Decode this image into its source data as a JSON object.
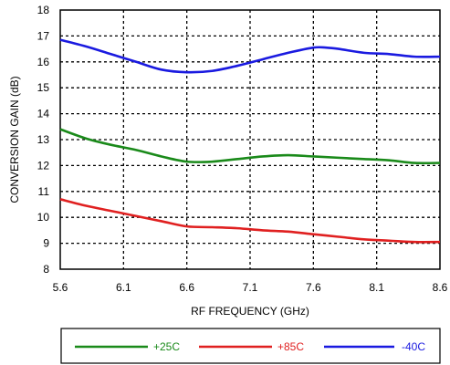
{
  "chart_data": {
    "type": "line",
    "xlabel": "RF FREQUENCY (GHz)",
    "ylabel": "CONVERSION GAIN (dB)",
    "xlim": [
      5.6,
      8.6
    ],
    "ylim": [
      8,
      18
    ],
    "x_ticks": [
      "5.6",
      "6.1",
      "6.6",
      "7.1",
      "7.6",
      "8.1",
      "8.6"
    ],
    "y_ticks": [
      "8",
      "9",
      "10",
      "11",
      "12",
      "13",
      "14",
      "15",
      "16",
      "17",
      "18"
    ],
    "grid": true,
    "legend_position": "bottom",
    "series": [
      {
        "name": "+25C",
        "color": "#1a8a1a",
        "x": [
          5.6,
          5.8,
          6.0,
          6.2,
          6.4,
          6.6,
          6.8,
          7.0,
          7.2,
          7.4,
          7.6,
          7.8,
          8.0,
          8.2,
          8.4,
          8.6
        ],
        "y": [
          13.4,
          13.05,
          12.8,
          12.6,
          12.35,
          12.15,
          12.15,
          12.25,
          12.35,
          12.4,
          12.35,
          12.3,
          12.25,
          12.2,
          12.1,
          12.1
        ]
      },
      {
        "name": "+85C",
        "color": "#e02020",
        "x": [
          5.6,
          5.8,
          6.0,
          6.2,
          6.4,
          6.6,
          6.8,
          7.0,
          7.2,
          7.4,
          7.6,
          7.8,
          8.0,
          8.2,
          8.4,
          8.6
        ],
        "y": [
          10.7,
          10.45,
          10.25,
          10.05,
          9.85,
          9.65,
          9.62,
          9.58,
          9.5,
          9.45,
          9.35,
          9.25,
          9.15,
          9.1,
          9.05,
          9.05
        ]
      },
      {
        "name": "-40C",
        "color": "#1a1ae0",
        "x": [
          5.6,
          5.8,
          6.0,
          6.2,
          6.4,
          6.6,
          6.8,
          7.0,
          7.2,
          7.4,
          7.6,
          7.7,
          7.8,
          8.0,
          8.2,
          8.4,
          8.6
        ],
        "y": [
          16.85,
          16.6,
          16.3,
          16.0,
          15.7,
          15.6,
          15.65,
          15.85,
          16.1,
          16.35,
          16.55,
          16.55,
          16.5,
          16.35,
          16.3,
          16.2,
          16.2
        ]
      }
    ]
  }
}
